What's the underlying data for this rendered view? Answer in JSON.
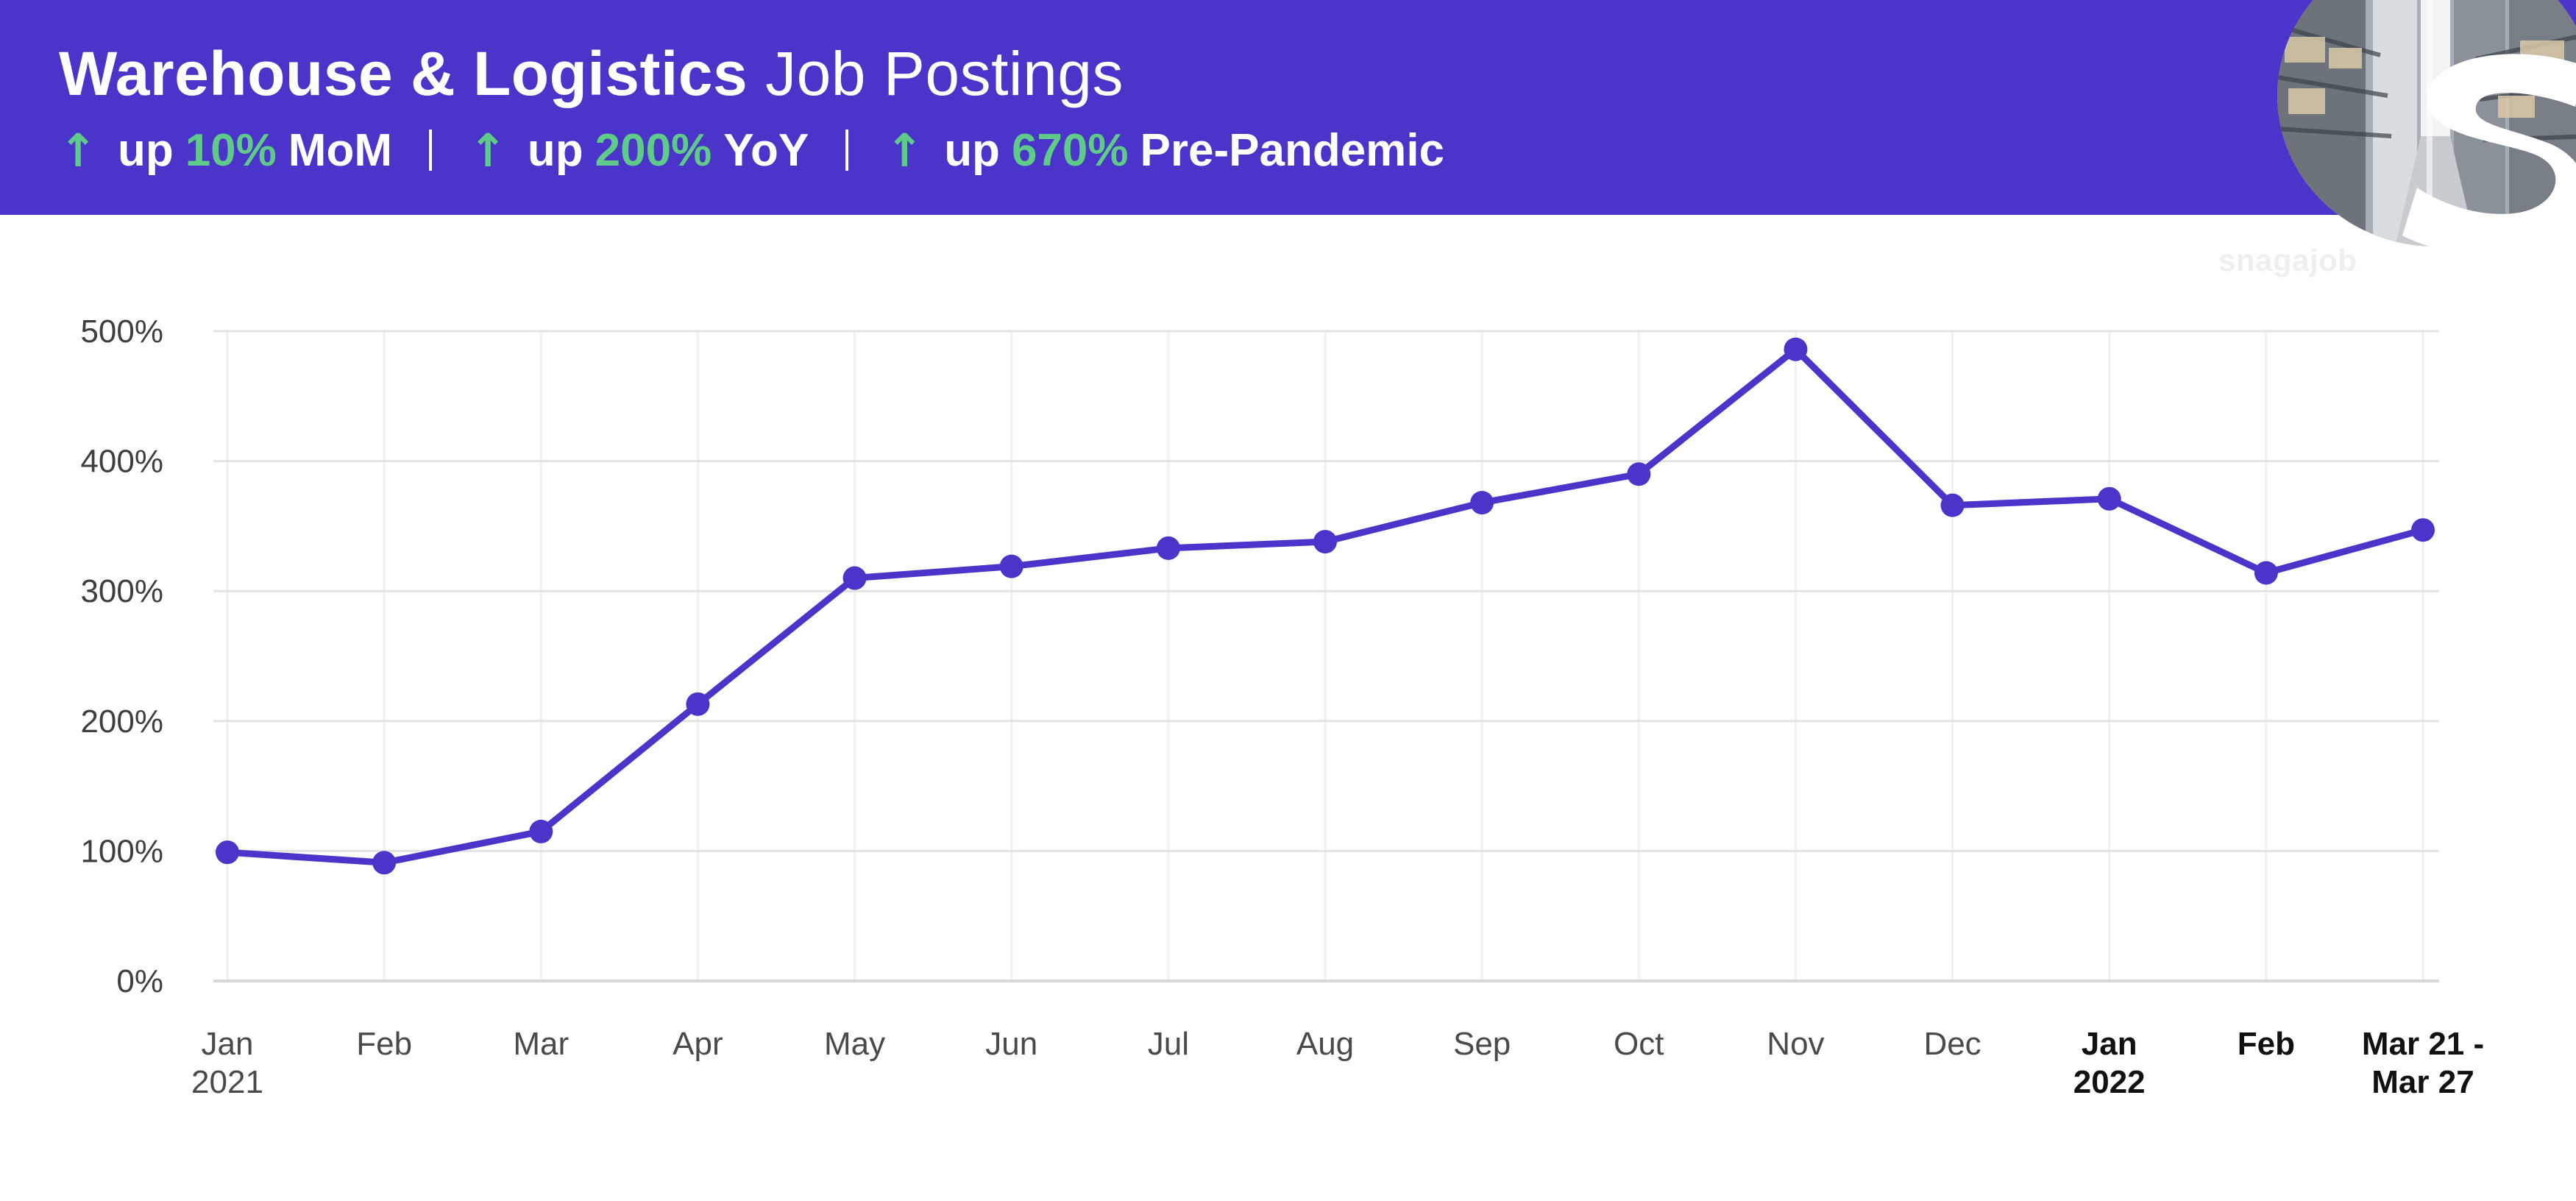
{
  "header": {
    "title_bold": "Warehouse & Logistics",
    "title_light": "Job Postings",
    "stats": [
      {
        "arrow": "↑",
        "prefix": "up",
        "value": "10%",
        "label": "MoM"
      },
      {
        "arrow": "↑",
        "prefix": "up",
        "value": "200%",
        "label": "YoY"
      },
      {
        "arrow": "↑",
        "prefix": "up",
        "value": "670%",
        "label": "Pre-Pandemic"
      }
    ]
  },
  "branding": {
    "logo_text": "snagajob",
    "logo_icon": "snagajob-s-logo-icon",
    "photo_icon": "warehouse-aisle-photo"
  },
  "colors": {
    "header_bg": "#4b34c9",
    "accent_green": "#5ecb88",
    "line": "#4b34c9",
    "grid": "#e3e3e3"
  },
  "chart_data": {
    "type": "line",
    "title": "",
    "xlabel": "",
    "ylabel": "",
    "categories": [
      [
        "Jan",
        "2021"
      ],
      [
        "Feb"
      ],
      [
        "Mar"
      ],
      [
        "Apr"
      ],
      [
        "May"
      ],
      [
        "Jun"
      ],
      [
        "Jul"
      ],
      [
        "Aug"
      ],
      [
        "Sep"
      ],
      [
        "Oct"
      ],
      [
        "Nov"
      ],
      [
        "Dec"
      ],
      [
        "Jan",
        "2022"
      ],
      [
        "Feb"
      ],
      [
        "Mar 21 -",
        "Mar 27"
      ]
    ],
    "emphasized_categories": [
      12,
      13,
      14
    ],
    "series": [
      {
        "values": [
          99,
          91,
          115,
          213,
          310,
          319,
          333,
          338,
          368,
          390,
          486,
          366,
          371,
          314,
          347
        ]
      }
    ],
    "yticks": [
      "0%",
      "100%",
      "200%",
      "300%",
      "400%",
      "500%"
    ],
    "ylim": [
      0,
      500
    ],
    "grid": true,
    "legend": "none"
  }
}
